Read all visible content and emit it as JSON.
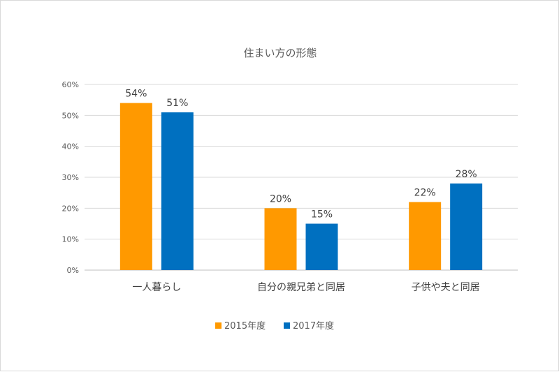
{
  "chart_data": {
    "type": "bar",
    "title": "住まい方の形態",
    "categories": [
      "一人暮らし",
      "自分の親兄弟と同居",
      "子供や夫と同居"
    ],
    "series": [
      {
        "name": "2015年度",
        "values": [
          54,
          20,
          22
        ],
        "color": "#FF9900",
        "labels": [
          "54%",
          "20%",
          "22%"
        ]
      },
      {
        "name": "2017年度",
        "values": [
          51,
          15,
          28
        ],
        "color": "#0070C0",
        "labels": [
          "51%",
          "15%",
          "28%"
        ]
      }
    ],
    "ylim": [
      0,
      60
    ],
    "yticks": [
      0,
      10,
      20,
      30,
      40,
      50,
      60
    ],
    "ytick_labels": [
      "0%",
      "10%",
      "20%",
      "30%",
      "40%",
      "50%",
      "60%"
    ],
    "xlabel": "",
    "ylabel": "",
    "grid": true,
    "legend_position": "bottom"
  }
}
